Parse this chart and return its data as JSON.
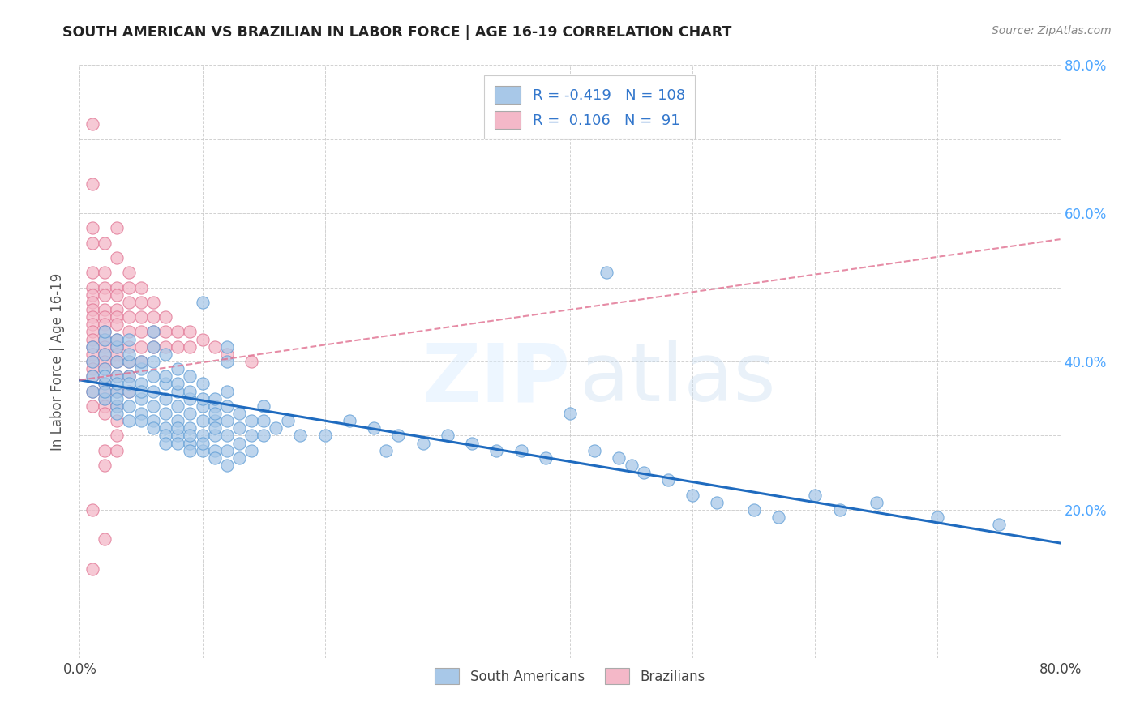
{
  "title": "SOUTH AMERICAN VS BRAZILIAN IN LABOR FORCE | AGE 16-19 CORRELATION CHART",
  "source": "Source: ZipAtlas.com",
  "ylabel": "In Labor Force | Age 16-19",
  "right_yticks": [
    "80.0%",
    "60.0%",
    "40.0%",
    "20.0%"
  ],
  "right_ytick_vals": [
    0.8,
    0.6,
    0.4,
    0.2
  ],
  "xlim": [
    0.0,
    0.8
  ],
  "ylim": [
    0.0,
    0.8
  ],
  "color_blue": "#a8c8e8",
  "color_blue_edge": "#5b9bd5",
  "color_pink": "#f4b8c8",
  "color_pink_edge": "#e07090",
  "color_trend_blue": "#1f6bbf",
  "color_trend_pink": "#e07090",
  "trend_blue_x0": 0.0,
  "trend_blue_x1": 0.8,
  "trend_blue_y0": 0.375,
  "trend_blue_y1": 0.155,
  "trend_pink_x0": 0.0,
  "trend_pink_x1": 0.8,
  "trend_pink_y0": 0.375,
  "trend_pink_y1": 0.565,
  "scatter_blue": [
    [
      0.01,
      0.4
    ],
    [
      0.01,
      0.38
    ],
    [
      0.01,
      0.42
    ],
    [
      0.01,
      0.36
    ],
    [
      0.02,
      0.41
    ],
    [
      0.02,
      0.39
    ],
    [
      0.02,
      0.43
    ],
    [
      0.02,
      0.37
    ],
    [
      0.02,
      0.35
    ],
    [
      0.02,
      0.44
    ],
    [
      0.02,
      0.38
    ],
    [
      0.02,
      0.36
    ],
    [
      0.03,
      0.4
    ],
    [
      0.03,
      0.38
    ],
    [
      0.03,
      0.42
    ],
    [
      0.03,
      0.36
    ],
    [
      0.03,
      0.34
    ],
    [
      0.03,
      0.43
    ],
    [
      0.03,
      0.37
    ],
    [
      0.03,
      0.35
    ],
    [
      0.03,
      0.33
    ],
    [
      0.04,
      0.4
    ],
    [
      0.04,
      0.38
    ],
    [
      0.04,
      0.36
    ],
    [
      0.04,
      0.34
    ],
    [
      0.04,
      0.32
    ],
    [
      0.04,
      0.41
    ],
    [
      0.04,
      0.43
    ],
    [
      0.04,
      0.37
    ],
    [
      0.05,
      0.39
    ],
    [
      0.05,
      0.37
    ],
    [
      0.05,
      0.35
    ],
    [
      0.05,
      0.33
    ],
    [
      0.05,
      0.4
    ],
    [
      0.05,
      0.36
    ],
    [
      0.05,
      0.32
    ],
    [
      0.06,
      0.38
    ],
    [
      0.06,
      0.36
    ],
    [
      0.06,
      0.34
    ],
    [
      0.06,
      0.32
    ],
    [
      0.06,
      0.31
    ],
    [
      0.06,
      0.4
    ],
    [
      0.06,
      0.42
    ],
    [
      0.06,
      0.44
    ],
    [
      0.07,
      0.37
    ],
    [
      0.07,
      0.35
    ],
    [
      0.07,
      0.33
    ],
    [
      0.07,
      0.31
    ],
    [
      0.07,
      0.38
    ],
    [
      0.07,
      0.41
    ],
    [
      0.07,
      0.3
    ],
    [
      0.07,
      0.29
    ],
    [
      0.08,
      0.36
    ],
    [
      0.08,
      0.34
    ],
    [
      0.08,
      0.32
    ],
    [
      0.08,
      0.3
    ],
    [
      0.08,
      0.37
    ],
    [
      0.08,
      0.39
    ],
    [
      0.08,
      0.29
    ],
    [
      0.08,
      0.31
    ],
    [
      0.09,
      0.35
    ],
    [
      0.09,
      0.33
    ],
    [
      0.09,
      0.31
    ],
    [
      0.09,
      0.29
    ],
    [
      0.09,
      0.36
    ],
    [
      0.09,
      0.38
    ],
    [
      0.09,
      0.28
    ],
    [
      0.09,
      0.3
    ],
    [
      0.1,
      0.48
    ],
    [
      0.1,
      0.34
    ],
    [
      0.1,
      0.32
    ],
    [
      0.1,
      0.3
    ],
    [
      0.1,
      0.35
    ],
    [
      0.1,
      0.37
    ],
    [
      0.1,
      0.28
    ],
    [
      0.1,
      0.29
    ],
    [
      0.11,
      0.34
    ],
    [
      0.11,
      0.32
    ],
    [
      0.11,
      0.3
    ],
    [
      0.11,
      0.28
    ],
    [
      0.11,
      0.35
    ],
    [
      0.11,
      0.33
    ],
    [
      0.11,
      0.27
    ],
    [
      0.11,
      0.31
    ],
    [
      0.12,
      0.42
    ],
    [
      0.12,
      0.4
    ],
    [
      0.12,
      0.34
    ],
    [
      0.12,
      0.32
    ],
    [
      0.12,
      0.3
    ],
    [
      0.12,
      0.28
    ],
    [
      0.12,
      0.26
    ],
    [
      0.12,
      0.36
    ],
    [
      0.13,
      0.33
    ],
    [
      0.13,
      0.31
    ],
    [
      0.13,
      0.29
    ],
    [
      0.13,
      0.27
    ],
    [
      0.14,
      0.32
    ],
    [
      0.14,
      0.3
    ],
    [
      0.14,
      0.28
    ],
    [
      0.15,
      0.34
    ],
    [
      0.15,
      0.32
    ],
    [
      0.15,
      0.3
    ],
    [
      0.16,
      0.31
    ],
    [
      0.17,
      0.32
    ],
    [
      0.18,
      0.3
    ],
    [
      0.2,
      0.3
    ],
    [
      0.22,
      0.32
    ],
    [
      0.24,
      0.31
    ],
    [
      0.25,
      0.28
    ],
    [
      0.26,
      0.3
    ],
    [
      0.28,
      0.29
    ],
    [
      0.3,
      0.3
    ],
    [
      0.32,
      0.29
    ],
    [
      0.34,
      0.28
    ],
    [
      0.36,
      0.28
    ],
    [
      0.38,
      0.27
    ],
    [
      0.4,
      0.33
    ],
    [
      0.42,
      0.28
    ],
    [
      0.43,
      0.52
    ],
    [
      0.44,
      0.27
    ],
    [
      0.45,
      0.26
    ],
    [
      0.46,
      0.25
    ],
    [
      0.48,
      0.24
    ],
    [
      0.5,
      0.22
    ],
    [
      0.52,
      0.21
    ],
    [
      0.55,
      0.2
    ],
    [
      0.57,
      0.19
    ],
    [
      0.6,
      0.22
    ],
    [
      0.62,
      0.2
    ],
    [
      0.65,
      0.21
    ],
    [
      0.7,
      0.19
    ],
    [
      0.75,
      0.18
    ]
  ],
  "scatter_pink": [
    [
      0.01,
      0.72
    ],
    [
      0.01,
      0.64
    ],
    [
      0.01,
      0.58
    ],
    [
      0.01,
      0.56
    ],
    [
      0.01,
      0.52
    ],
    [
      0.01,
      0.5
    ],
    [
      0.01,
      0.49
    ],
    [
      0.01,
      0.48
    ],
    [
      0.01,
      0.47
    ],
    [
      0.01,
      0.46
    ],
    [
      0.01,
      0.45
    ],
    [
      0.01,
      0.44
    ],
    [
      0.01,
      0.43
    ],
    [
      0.01,
      0.42
    ],
    [
      0.01,
      0.41
    ],
    [
      0.01,
      0.4
    ],
    [
      0.01,
      0.39
    ],
    [
      0.01,
      0.38
    ],
    [
      0.01,
      0.36
    ],
    [
      0.01,
      0.34
    ],
    [
      0.01,
      0.2
    ],
    [
      0.01,
      0.12
    ],
    [
      0.02,
      0.56
    ],
    [
      0.02,
      0.52
    ],
    [
      0.02,
      0.5
    ],
    [
      0.02,
      0.49
    ],
    [
      0.02,
      0.47
    ],
    [
      0.02,
      0.46
    ],
    [
      0.02,
      0.45
    ],
    [
      0.02,
      0.44
    ],
    [
      0.02,
      0.43
    ],
    [
      0.02,
      0.42
    ],
    [
      0.02,
      0.41
    ],
    [
      0.02,
      0.4
    ],
    [
      0.02,
      0.39
    ],
    [
      0.02,
      0.37
    ],
    [
      0.02,
      0.36
    ],
    [
      0.02,
      0.35
    ],
    [
      0.02,
      0.34
    ],
    [
      0.02,
      0.33
    ],
    [
      0.02,
      0.28
    ],
    [
      0.02,
      0.26
    ],
    [
      0.02,
      0.16
    ],
    [
      0.03,
      0.58
    ],
    [
      0.03,
      0.54
    ],
    [
      0.03,
      0.5
    ],
    [
      0.03,
      0.49
    ],
    [
      0.03,
      0.47
    ],
    [
      0.03,
      0.46
    ],
    [
      0.03,
      0.45
    ],
    [
      0.03,
      0.43
    ],
    [
      0.03,
      0.42
    ],
    [
      0.03,
      0.41
    ],
    [
      0.03,
      0.4
    ],
    [
      0.03,
      0.38
    ],
    [
      0.03,
      0.36
    ],
    [
      0.03,
      0.34
    ],
    [
      0.03,
      0.32
    ],
    [
      0.03,
      0.3
    ],
    [
      0.03,
      0.28
    ],
    [
      0.04,
      0.52
    ],
    [
      0.04,
      0.5
    ],
    [
      0.04,
      0.48
    ],
    [
      0.04,
      0.46
    ],
    [
      0.04,
      0.44
    ],
    [
      0.04,
      0.42
    ],
    [
      0.04,
      0.4
    ],
    [
      0.04,
      0.38
    ],
    [
      0.04,
      0.36
    ],
    [
      0.05,
      0.5
    ],
    [
      0.05,
      0.48
    ],
    [
      0.05,
      0.46
    ],
    [
      0.05,
      0.44
    ],
    [
      0.05,
      0.42
    ],
    [
      0.05,
      0.4
    ],
    [
      0.06,
      0.48
    ],
    [
      0.06,
      0.46
    ],
    [
      0.06,
      0.44
    ],
    [
      0.06,
      0.42
    ],
    [
      0.07,
      0.46
    ],
    [
      0.07,
      0.44
    ],
    [
      0.07,
      0.42
    ],
    [
      0.08,
      0.44
    ],
    [
      0.08,
      0.42
    ],
    [
      0.09,
      0.44
    ],
    [
      0.09,
      0.42
    ],
    [
      0.1,
      0.43
    ],
    [
      0.11,
      0.42
    ],
    [
      0.12,
      0.41
    ],
    [
      0.14,
      0.4
    ]
  ],
  "legend1_label": "R = -0.419   N = 108",
  "legend2_label": "R =  0.106   N =  91",
  "bottom_legend1": "South Americans",
  "bottom_legend2": "Brazilians"
}
